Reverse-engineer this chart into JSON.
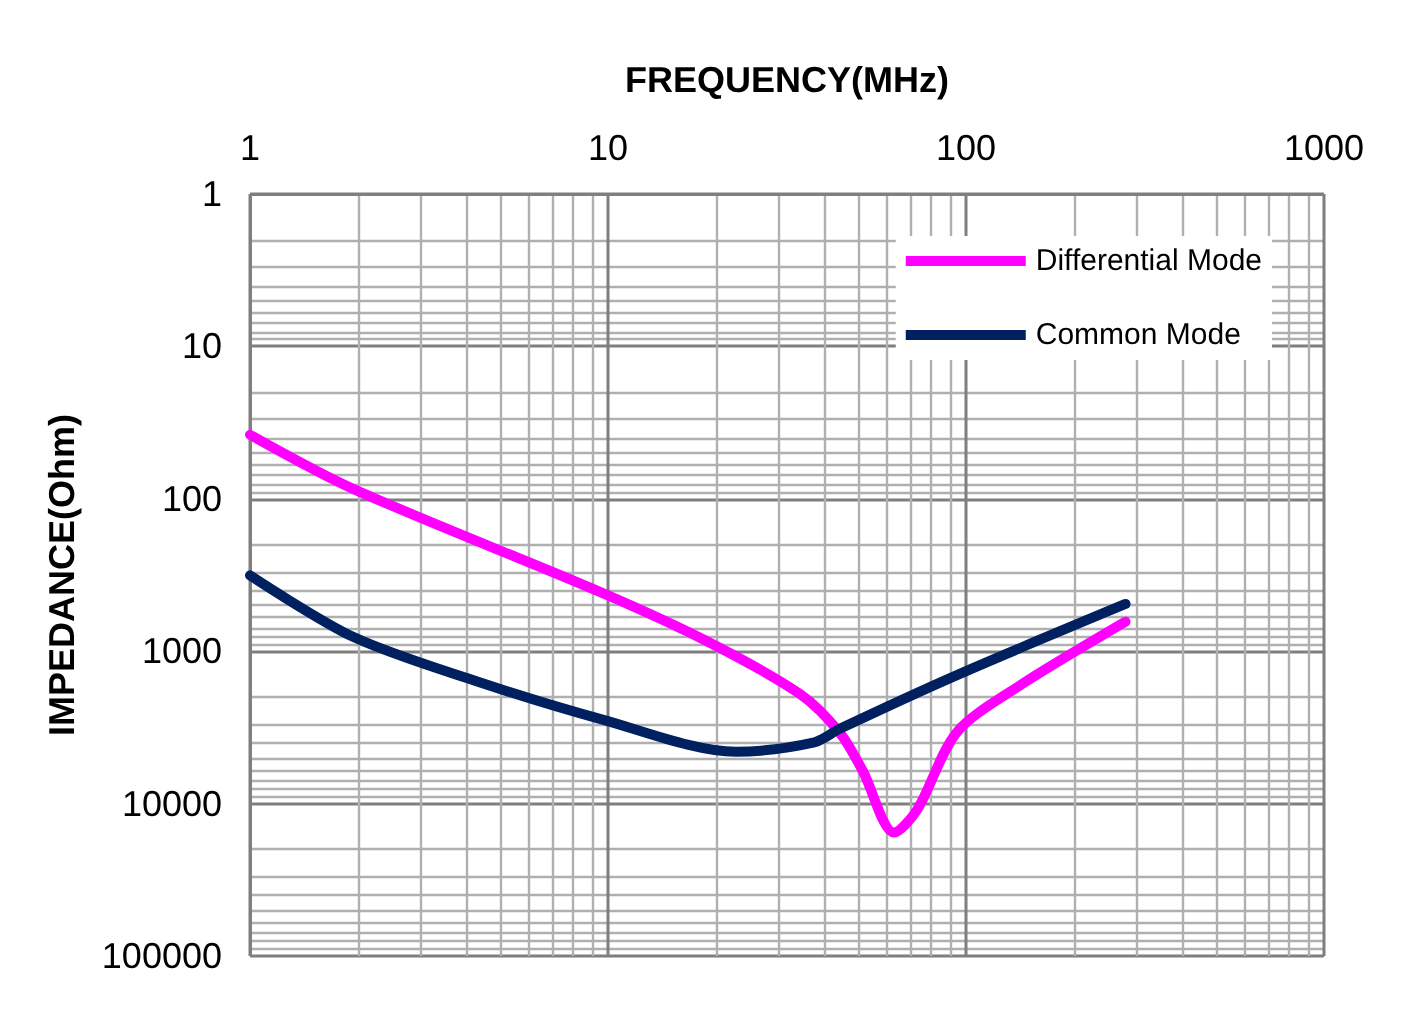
{
  "chart_data": {
    "type": "line",
    "xlabel": "FREQUENCY(MHz)",
    "ylabel": "IMPEDANCE(Ohm)",
    "log": "xy",
    "grid": true,
    "legend": "top right",
    "marker": "none",
    "line_style": "solid",
    "xlim": [
      1,
      1000
    ],
    "xticks": [
      1,
      10,
      100,
      1000
    ],
    "ylim": [
      100000,
      1
    ],
    "yticks": [
      1,
      10,
      100,
      1000,
      10000,
      100000
    ],
    "series": [
      {
        "name": "Differential Mode",
        "color": "#ff00ff",
        "x": [
          1,
          1.94,
          9.6,
          19.2,
          34.5,
          44.4,
          51.5,
          63,
          73,
          94,
          137,
          279
        ],
        "values": [
          38,
          86,
          413,
          877,
          1920,
          3430,
          6110,
          15500,
          11000,
          3430,
          1760,
          640
        ]
      },
      {
        "name": "Common Mode",
        "color": "#002060",
        "x": [
          1,
          1.94,
          4.27,
          9.6,
          22.8,
          37.7,
          44.4,
          94,
          279
        ],
        "values": [
          318,
          805,
          1570,
          2800,
          4570,
          3960,
          3230,
          1440,
          490
        ]
      }
    ]
  }
}
